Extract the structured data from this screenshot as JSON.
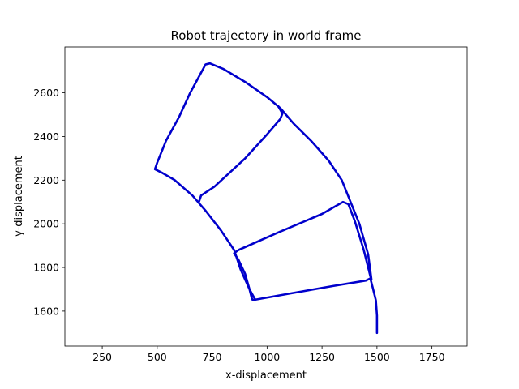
{
  "chart_data": {
    "type": "line",
    "title": "Robot trajectory in world frame",
    "xlabel": "x-displacement",
    "ylabel": "y-displacement",
    "xlim": [
      80,
      1910
    ],
    "ylim": [
      1440,
      2810
    ],
    "xticks": [
      250,
      500,
      750,
      1000,
      1250,
      1500,
      1750
    ],
    "yticks": [
      1600,
      1800,
      2000,
      2200,
      2400,
      2600
    ],
    "grid": false,
    "line_color": "#0000cc",
    "series": [
      {
        "values": [
          [
            1500,
            1500
          ],
          [
            1500,
            1580
          ],
          [
            1495,
            1650
          ],
          [
            1480,
            1710
          ],
          [
            1470,
            1750
          ],
          [
            1450,
            1740
          ],
          [
            1300,
            1715
          ],
          [
            1100,
            1680
          ],
          [
            960,
            1655
          ],
          [
            935,
            1650
          ],
          [
            930,
            1660
          ],
          [
            920,
            1700
          ],
          [
            900,
            1770
          ],
          [
            870,
            1835
          ],
          [
            850,
            1865
          ],
          [
            870,
            1880
          ],
          [
            1050,
            1960
          ],
          [
            1250,
            2045
          ],
          [
            1345,
            2100
          ],
          [
            1370,
            2090
          ],
          [
            1400,
            2010
          ],
          [
            1440,
            1880
          ],
          [
            1460,
            1800
          ],
          [
            1470,
            1760
          ],
          [
            1475,
            1745
          ],
          [
            1460,
            1860
          ],
          [
            1420,
            2000
          ],
          [
            1380,
            2100
          ],
          [
            1340,
            2200
          ],
          [
            1280,
            2290
          ],
          [
            1200,
            2380
          ],
          [
            1120,
            2460
          ],
          [
            1060,
            2530
          ],
          [
            1000,
            2580
          ],
          [
            900,
            2650
          ],
          [
            800,
            2710
          ],
          [
            740,
            2735
          ],
          [
            720,
            2730
          ],
          [
            650,
            2600
          ],
          [
            600,
            2490
          ],
          [
            540,
            2380
          ],
          [
            500,
            2280
          ],
          [
            490,
            2250
          ],
          [
            520,
            2235
          ],
          [
            580,
            2200
          ],
          [
            660,
            2130
          ],
          [
            720,
            2060
          ],
          [
            790,
            1970
          ],
          [
            850,
            1880
          ],
          [
            880,
            1790
          ],
          [
            920,
            1700
          ],
          [
            945,
            1655
          ]
        ]
      },
      {
        "values": [
          [
            690,
            2100
          ],
          [
            700,
            2130
          ],
          [
            760,
            2170
          ],
          [
            900,
            2300
          ],
          [
            1000,
            2410
          ],
          [
            1060,
            2480
          ],
          [
            1070,
            2505
          ],
          [
            1050,
            2540
          ]
        ]
      }
    ]
  }
}
